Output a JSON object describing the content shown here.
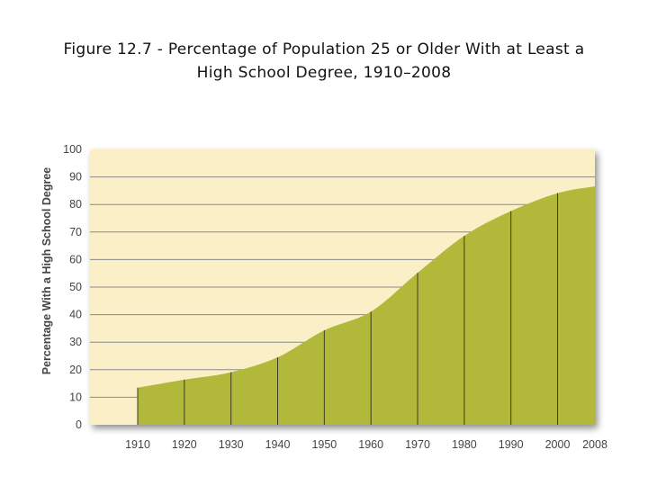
{
  "title_line1": "Figure 12.7 - Percentage of Population 25 or Older With at Least a",
  "title_line2": "High School Degree, 1910–2008",
  "colors": {
    "plot_background": "#fbefc8",
    "area_fill": "#b2b93a",
    "gridline": "#8a8a8a",
    "divider": "#3d3d1f"
  },
  "chart_data": {
    "type": "area",
    "title": "Figure 12.7 - Percentage of Population 25 or Older With at Least a High School Degree, 1910–2008",
    "xlabel": "",
    "ylabel": "Percentage With a High School Degree",
    "x": [
      1910,
      1920,
      1930,
      1940,
      1950,
      1960,
      1970,
      1980,
      1990,
      2000,
      2008
    ],
    "x_tick_labels": [
      "1910",
      "1920",
      "1930",
      "1940",
      "1950",
      "1960",
      "1970",
      "1980",
      "1990",
      "2000",
      "2008"
    ],
    "y": [
      13.5,
      16.4,
      19.1,
      24.5,
      34.3,
      41.1,
      55.2,
      68.6,
      77.6,
      84.1,
      86.6
    ],
    "ylim": [
      0,
      100
    ],
    "y_ticks": [
      0,
      10,
      20,
      30,
      40,
      50,
      60,
      70,
      80,
      90,
      100
    ],
    "grid": true,
    "legend": "none"
  }
}
